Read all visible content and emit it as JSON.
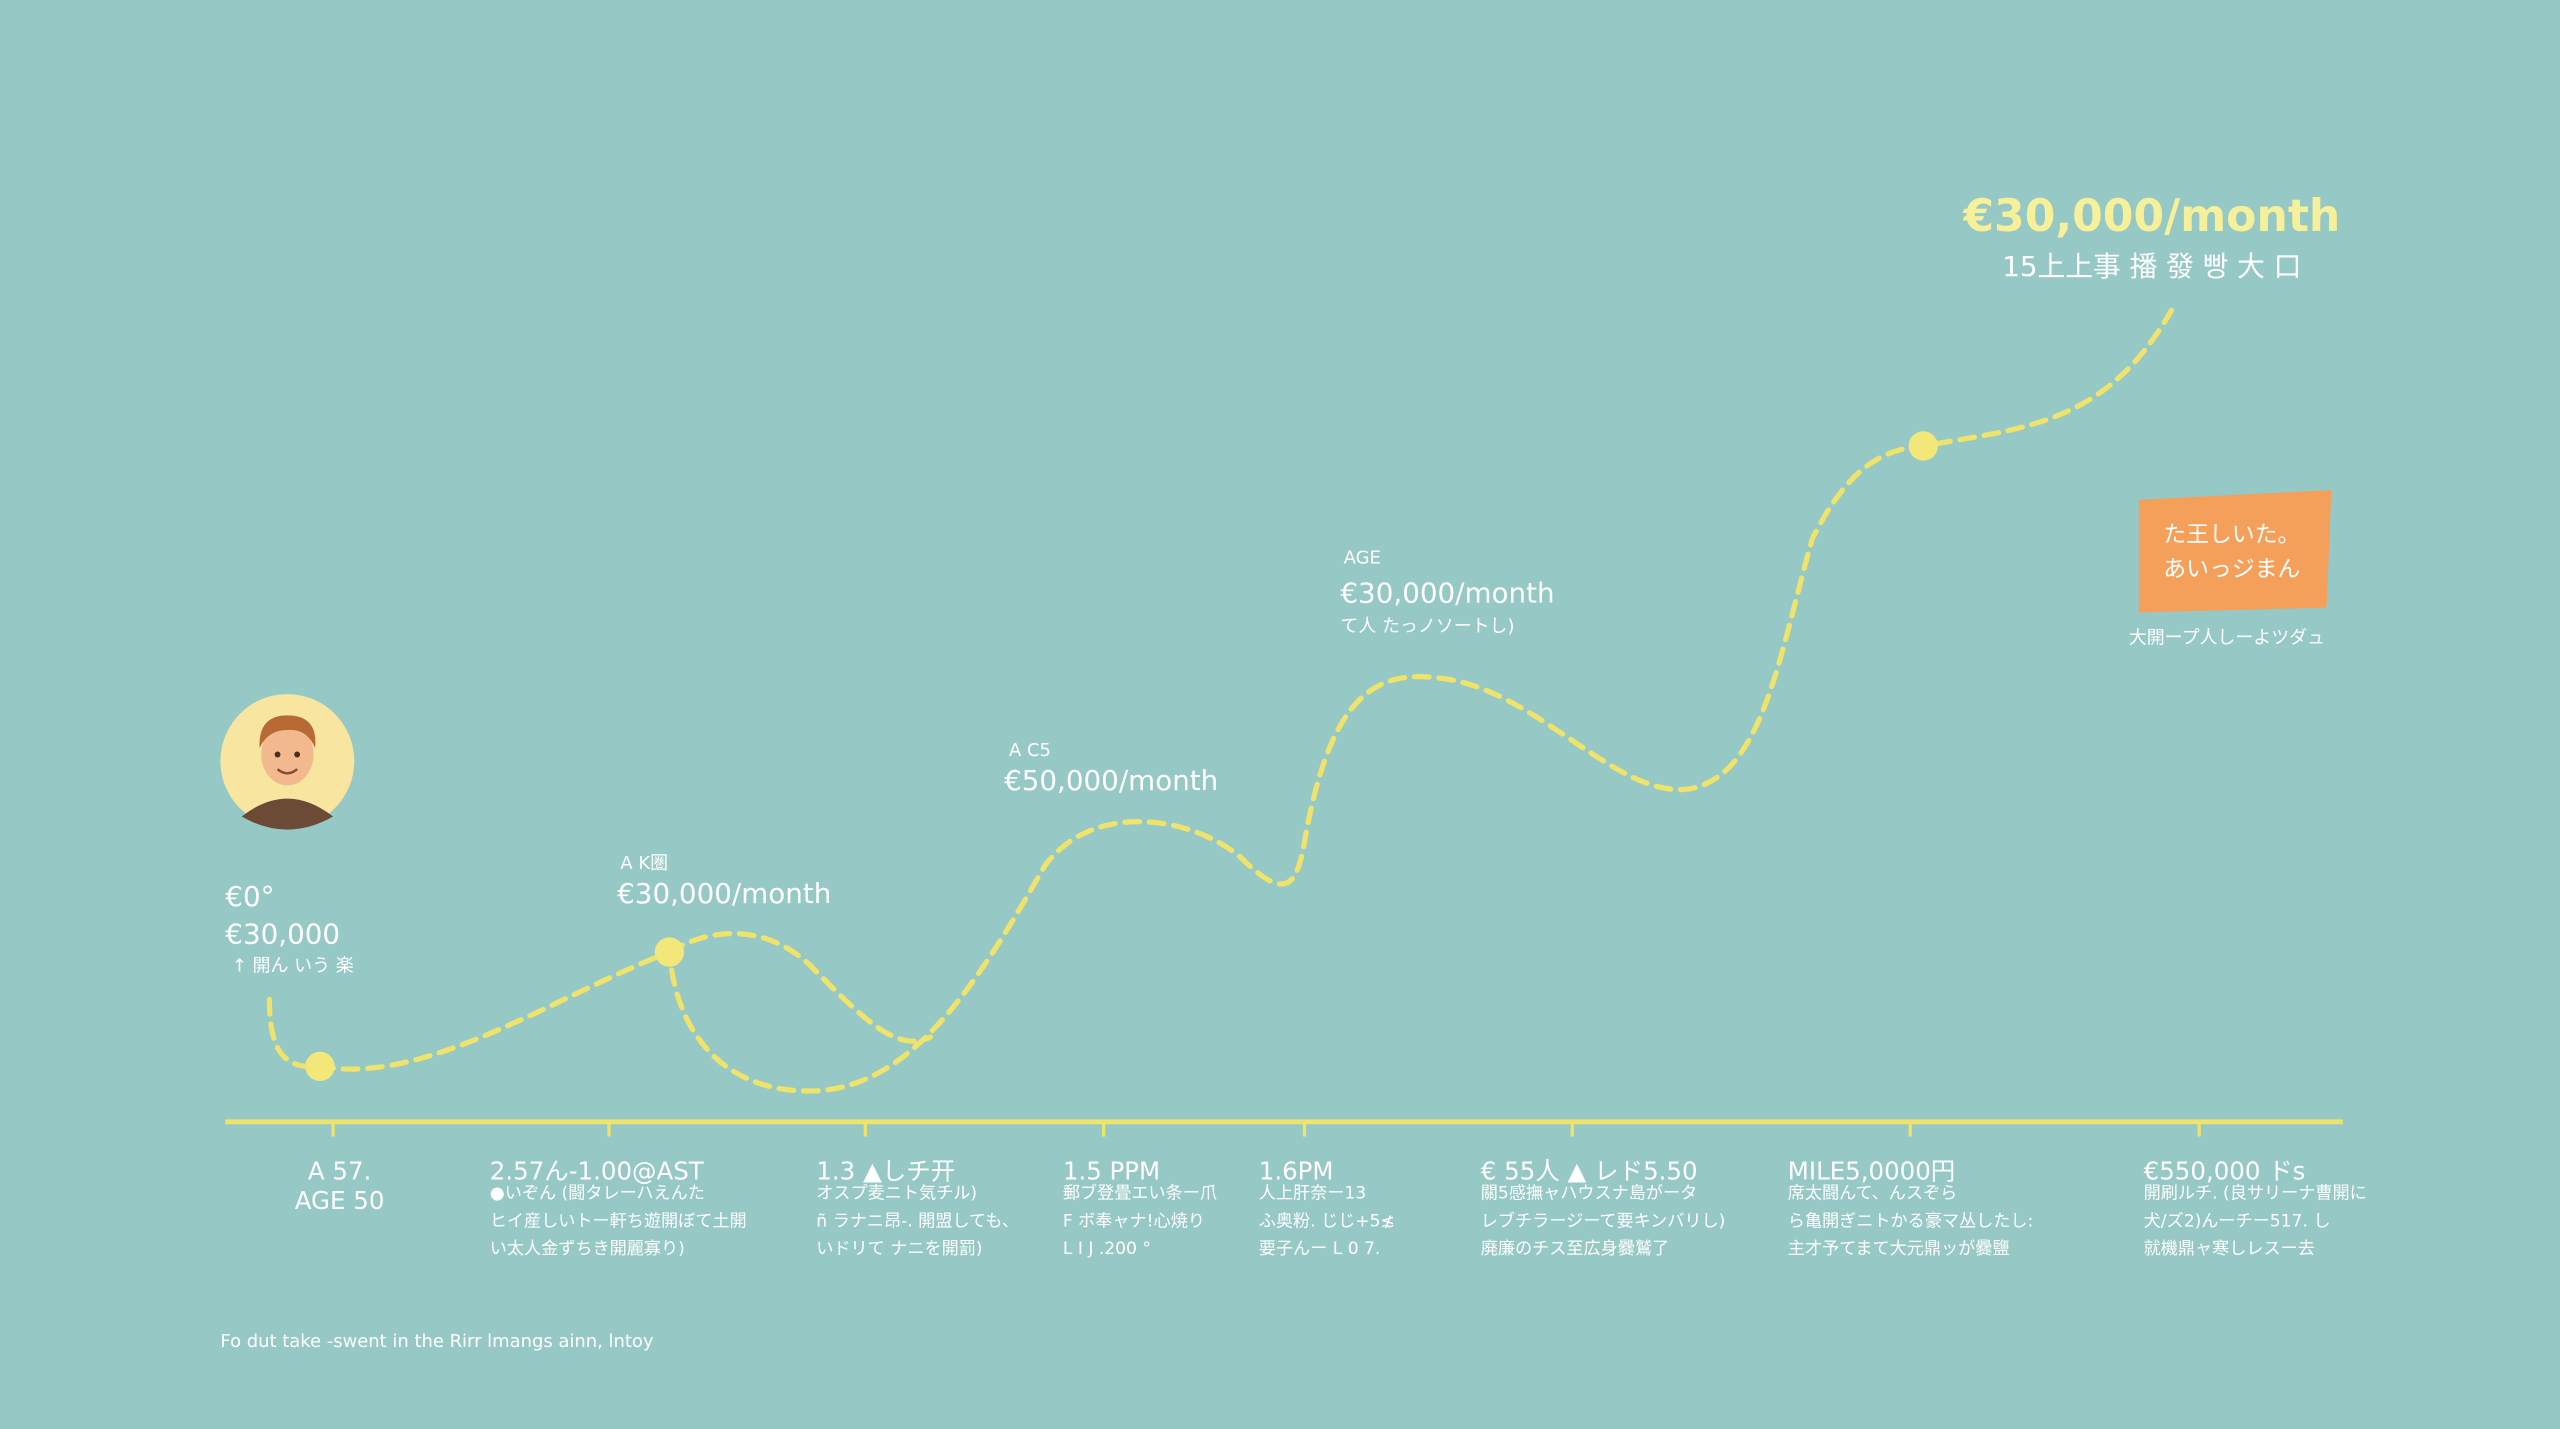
{
  "start": {
    "lines": [
      "€0°",
      "€30,000",
      "↑ 開ん いう 楽"
    ]
  },
  "milestones": [
    {
      "lines": [
        "A K圏",
        "€30,000/month"
      ]
    },
    {
      "lines": [
        "A C5",
        "€50,000/month"
      ]
    },
    {
      "lines": [
        "AGE",
        "€30,000/month",
        "て人 たっノソートし)"
      ]
    }
  ],
  "goal": {
    "title": "€30,000/month",
    "subtitle": "15上上事 播 發 빵 大 口"
  },
  "badge": {
    "lines": [
      "た王しいた。",
      "あいっジまん"
    ],
    "caption": "大開ープ人しーよツダュ"
  },
  "axis_labels": [
    {
      "lines": [
        "A 57.",
        "AGE 50"
      ]
    },
    {
      "lines": [
        "2.57ん-1.00@AST",
        "●いぞん (闘タレーハえんた",
        "ヒイ産しいトー軒ち遊開ぼて土開",
        "い太人金ずちき開麗寡り)"
      ]
    },
    {
      "lines": [
        "1.3 ▲しチ开",
        "オスプ麦ニト気チル)",
        "ñ ラナニ昂-. 開盟しても、",
        "いドリて ナニを開罰)"
      ]
    },
    {
      "lines": [
        "1.5 PPM",
        "郵ブ登畳エい条ー爪",
        "F ボ奉ャナ!心焼り",
        "L I J .200 °"
      ]
    },
    {
      "lines": [
        "1.6PM",
        "人上肝奈ー13",
        "ふ奥粉. じじ+5≴",
        "要子んー L 0 7."
      ]
    },
    {
      "lines": [
        "€ 55人 ▲ レド5.50",
        "關5感撫ャハウスナ島がータ",
        "レブチラージーて要キンバリし)",
        "廃廉のチス至広身爨鷲了"
      ]
    },
    {
      "lines": [
        "MILE5,0000円",
        "席太闘んて、んスぞら",
        "ら亀開ぎニトかる豪マ丛したし:",
        "主才予てまて大元鼎ッが爨鹽"
      ]
    },
    {
      "lines": [
        "€550,000 ドs",
        "開刷ルチ. (良サリーナ曹開に",
        "犬/ズ2)んーチー517. し",
        "就機鼎ャ寒しレスー去"
      ]
    }
  ],
  "footer": "Fo dut take -swent in the  Rirr lmangs ainn, lntoy"
}
